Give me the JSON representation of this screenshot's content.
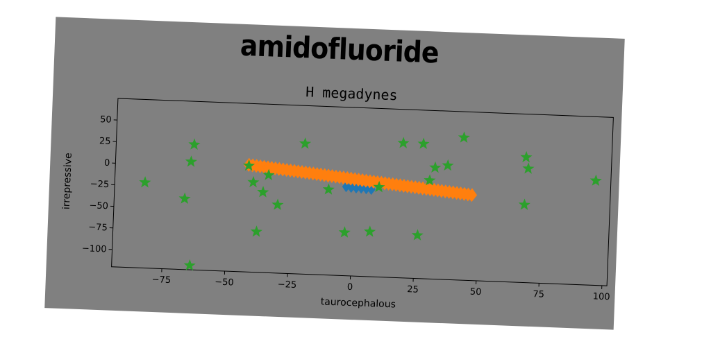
{
  "chart_data": {
    "type": "scatter",
    "title": "amidofluoride",
    "subtitle": "H megadynes",
    "xlabel": "taurocephalous",
    "ylabel": "irrepressive",
    "xlim": [
      -95,
      102
    ],
    "ylim": [
      -120,
      75
    ],
    "xticks": [
      -75,
      -50,
      -25,
      0,
      25,
      50,
      75,
      100
    ],
    "yticks": [
      50,
      25,
      0,
      -25,
      -50,
      -75,
      -100
    ],
    "xtick_labels": [
      "−75",
      "−50",
      "−25",
      "0",
      "25",
      "50",
      "75",
      "100"
    ],
    "ytick_labels": [
      "50",
      "25",
      "0",
      "−25",
      "−50",
      "−75",
      "−100"
    ],
    "grid": false,
    "series": [
      {
        "marker": "diamond",
        "color": "#1f77b4",
        "x": [
          -3,
          -1,
          1,
          3,
          5,
          7
        ],
        "y": [
          -17,
          -17.5,
          -18,
          -18,
          -18.5,
          -19
        ]
      },
      {
        "marker": "diamond",
        "color": "#ff7f0e",
        "x_start": -42,
        "y_start": 4,
        "x_end": 47,
        "y_end": -21,
        "count": 60
      },
      {
        "marker": "star",
        "color": "#2ca02c",
        "x": [
          -83,
          -64,
          -65,
          -67,
          -64,
          -42,
          -40,
          -36,
          -34,
          -30,
          -38,
          -20,
          -10,
          -3,
          7,
          10,
          19,
          27,
          26,
          30,
          32,
          37,
          43,
          68,
          68,
          69,
          96
        ],
        "y": [
          -21,
          25,
          5,
          -38,
          -115,
          3,
          -16,
          -27,
          -7,
          -41,
          -73,
          31,
          -21,
          -70,
          -68,
          -16,
          36,
          36,
          -70,
          -6,
          9,
          12,
          45,
          -30,
          25,
          12,
          1
        ]
      }
    ]
  }
}
